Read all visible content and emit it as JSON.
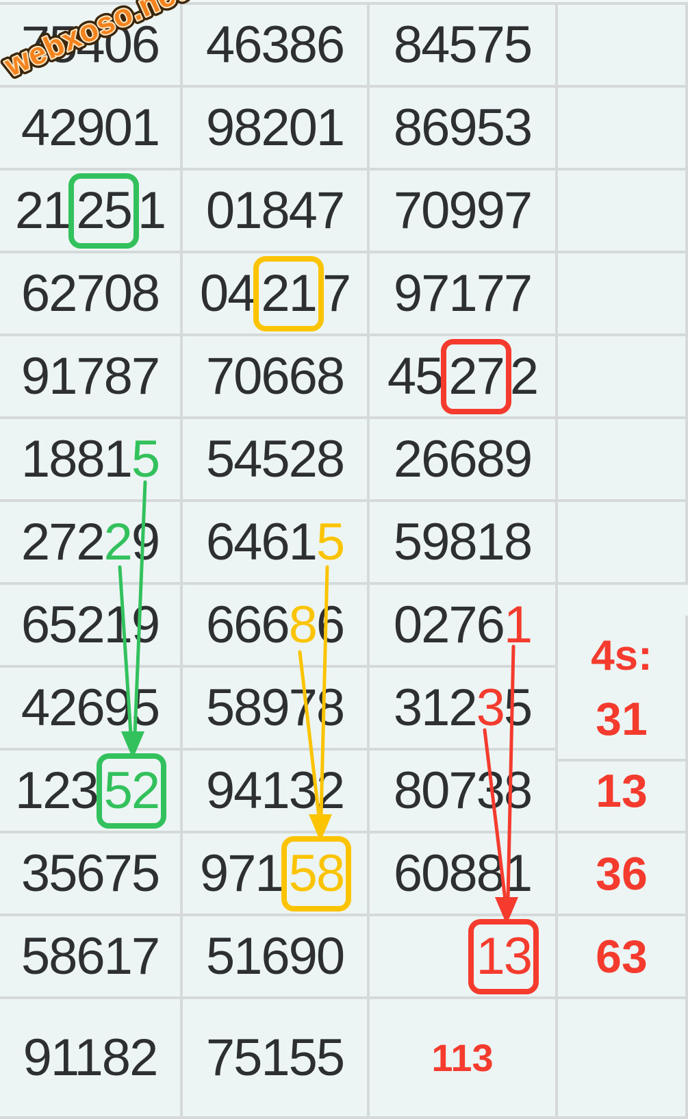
{
  "watermark": {
    "text": "webxoso.net"
  },
  "colors": {
    "green": "#32c15c",
    "yellow": "#fcc400",
    "red": "#f43b2d",
    "watermark_orange": "#f5831d",
    "watermark_outline": "#3b2609",
    "number_text": "#2d2f31",
    "cell_background": "#edf5f4",
    "grid_line": "#d5d9da"
  },
  "table": {
    "rows": [
      {
        "cells": [
          {
            "segs": [
              {
                "t": "75406"
              }
            ]
          },
          {
            "segs": [
              {
                "t": "46386"
              }
            ]
          },
          {
            "segs": [
              {
                "t": "84575"
              }
            ]
          },
          {
            "segs": []
          }
        ]
      },
      {
        "cells": [
          {
            "segs": [
              {
                "t": "42901"
              }
            ]
          },
          {
            "segs": [
              {
                "t": "98201"
              }
            ]
          },
          {
            "segs": [
              {
                "t": "86953"
              }
            ]
          },
          {
            "segs": []
          }
        ]
      },
      {
        "cells": [
          {
            "segs": [
              {
                "t": "21"
              },
              {
                "t": "25",
                "box": "green"
              },
              {
                "t": "1"
              }
            ]
          },
          {
            "segs": [
              {
                "t": "01847"
              }
            ]
          },
          {
            "segs": [
              {
                "t": "70997"
              }
            ]
          },
          {
            "segs": []
          }
        ]
      },
      {
        "cells": [
          {
            "segs": [
              {
                "t": "62708"
              }
            ]
          },
          {
            "segs": [
              {
                "t": "04"
              },
              {
                "t": "21",
                "box": "yellow"
              },
              {
                "t": "7"
              }
            ]
          },
          {
            "segs": [
              {
                "t": "97177"
              }
            ]
          },
          {
            "segs": []
          }
        ]
      },
      {
        "cells": [
          {
            "segs": [
              {
                "t": "91787"
              }
            ]
          },
          {
            "segs": [
              {
                "t": "70668"
              }
            ]
          },
          {
            "segs": [
              {
                "t": "45"
              },
              {
                "t": "27",
                "box": "red"
              },
              {
                "t": "2"
              }
            ]
          },
          {
            "segs": []
          }
        ]
      },
      {
        "cells": [
          {
            "segs": [
              {
                "t": "1881"
              },
              {
                "t": "5",
                "c": "green"
              }
            ]
          },
          {
            "segs": [
              {
                "t": "54528"
              }
            ]
          },
          {
            "segs": [
              {
                "t": "26689"
              }
            ]
          },
          {
            "segs": []
          }
        ]
      },
      {
        "cells": [
          {
            "segs": [
              {
                "t": "272"
              },
              {
                "t": "2",
                "c": "green"
              },
              {
                "t": "9"
              }
            ]
          },
          {
            "segs": [
              {
                "t": "6461"
              },
              {
                "t": "5",
                "c": "yellow"
              }
            ]
          },
          {
            "segs": [
              {
                "t": "59818"
              }
            ]
          },
          {
            "segs": []
          }
        ]
      },
      {
        "cells": [
          {
            "segs": [
              {
                "t": "65219"
              }
            ]
          },
          {
            "segs": [
              {
                "t": "666"
              },
              {
                "t": "8",
                "c": "yellow"
              },
              {
                "t": "6"
              }
            ]
          },
          {
            "segs": [
              {
                "t": "0276"
              },
              {
                "t": "1",
                "c": "red"
              }
            ]
          },
          {
            "name": "side-header-cell",
            "mod": "side-label-low",
            "segs": [
              {
                "t": "4s:",
                "c": "red"
              }
            ]
          }
        ]
      },
      {
        "cells": [
          {
            "segs": [
              {
                "t": "42695"
              }
            ]
          },
          {
            "segs": [
              {
                "t": "58978"
              }
            ]
          },
          {
            "segs": [
              {
                "t": "312"
              },
              {
                "t": "3",
                "c": "red"
              },
              {
                "t": "5"
              }
            ]
          },
          {
            "name": "side-value-cell",
            "mod": "side-low",
            "segs": [
              {
                "t": "31",
                "c": "red"
              }
            ]
          }
        ]
      },
      {
        "cells": [
          {
            "segs": [
              {
                "t": "123"
              },
              {
                "t": "52",
                "c": "green",
                "box": "green"
              }
            ]
          },
          {
            "segs": [
              {
                "t": "94132"
              }
            ]
          },
          {
            "segs": [
              {
                "t": "80738"
              }
            ]
          },
          {
            "name": "side-value-cell",
            "mod": "side",
            "segs": [
              {
                "t": "13",
                "c": "red"
              }
            ]
          }
        ]
      },
      {
        "cells": [
          {
            "segs": [
              {
                "t": "35675"
              }
            ]
          },
          {
            "segs": [
              {
                "t": "971"
              },
              {
                "t": "58",
                "c": "yellow",
                "box": "yellow"
              }
            ]
          },
          {
            "segs": [
              {
                "t": "60881"
              }
            ]
          },
          {
            "name": "side-value-cell",
            "mod": "side",
            "segs": [
              {
                "t": "36",
                "c": "red"
              }
            ]
          }
        ]
      },
      {
        "cells": [
          {
            "segs": [
              {
                "t": "58617"
              }
            ]
          },
          {
            "segs": [
              {
                "t": "51690"
              }
            ]
          },
          {
            "mod": "right",
            "segs": [
              {
                "t": "13",
                "c": "red",
                "box": "red"
              }
            ]
          },
          {
            "name": "side-value-cell",
            "mod": "side",
            "segs": [
              {
                "t": "63",
                "c": "red"
              }
            ]
          }
        ]
      },
      {
        "cells": [
          {
            "segs": [
              {
                "t": "91182"
              }
            ]
          },
          {
            "segs": [
              {
                "t": "75155"
              }
            ]
          },
          {
            "mod": "small",
            "segs": [
              {
                "t": "113",
                "c": "red"
              }
            ]
          },
          {
            "segs": []
          }
        ]
      }
    ]
  }
}
